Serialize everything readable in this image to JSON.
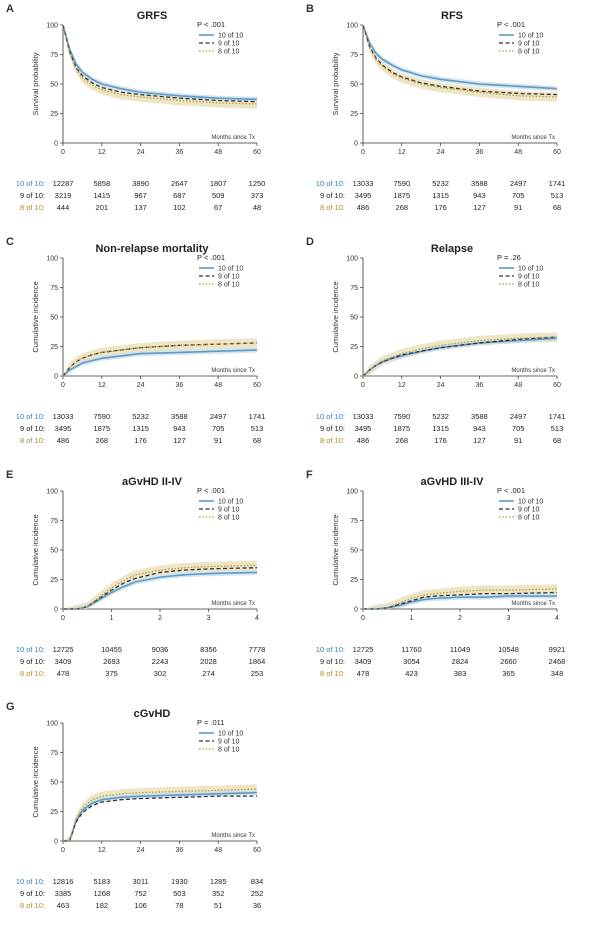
{
  "colors": {
    "g10": "#5a9bc8",
    "g9": "#333333",
    "g8": "#b59a3a",
    "band8": "#e8dcb4",
    "band10": "#c9dcea",
    "label10": "#3a7fbf",
    "label8": "#b08b2a"
  },
  "legend_names": [
    "10 of 10",
    "9 of 10",
    "8 of 10"
  ],
  "risk_labels": [
    "10 of 10:",
    "9 of 10:",
    "8 of 10:"
  ],
  "chart_data": [
    {
      "panel": "A",
      "type": "line",
      "title": "GRFS",
      "pvalue": "P < .001",
      "ylabel": "Survival probability",
      "xlabel": "Months since Tx",
      "xlim": [
        0,
        60
      ],
      "ylim": [
        0,
        100
      ],
      "xticks": [
        "0",
        "12",
        "24",
        "36",
        "48",
        "60"
      ],
      "yticks": [
        "0",
        "25",
        "50",
        "75",
        "100"
      ],
      "x": [
        0,
        2,
        4,
        6,
        9,
        12,
        18,
        24,
        36,
        48,
        60
      ],
      "series": [
        {
          "name": "10 of 10",
          "values": [
            100,
            80,
            67,
            60,
            54,
            50,
            46,
            43,
            40,
            38,
            37
          ]
        },
        {
          "name": "9 of 10",
          "values": [
            100,
            78,
            64,
            57,
            51,
            47,
            43,
            41,
            38,
            36,
            35
          ]
        },
        {
          "name": "8 of 10",
          "values": [
            100,
            77,
            63,
            55,
            49,
            45,
            41,
            39,
            36,
            34,
            33
          ]
        }
      ],
      "risk": [
        [
          "12287",
          "5858",
          "3890",
          "2647",
          "1807",
          "1250"
        ],
        [
          "3219",
          "1415",
          "967",
          "687",
          "509",
          "373"
        ],
        [
          "444",
          "201",
          "137",
          "102",
          "67",
          "48"
        ]
      ]
    },
    {
      "panel": "B",
      "type": "line",
      "title": "RFS",
      "pvalue": "P < .001",
      "ylabel": "Survival probability",
      "xlabel": "Months since Tx",
      "xlim": [
        0,
        60
      ],
      "ylim": [
        0,
        100
      ],
      "xticks": [
        "0",
        "12",
        "24",
        "36",
        "48",
        "60"
      ],
      "yticks": [
        "0",
        "25",
        "50",
        "75",
        "100"
      ],
      "x": [
        0,
        2,
        4,
        6,
        9,
        12,
        18,
        24,
        36,
        48,
        60
      ],
      "series": [
        {
          "name": "10 of 10",
          "values": [
            100,
            85,
            76,
            71,
            66,
            62,
            57,
            54,
            50,
            48,
            46
          ]
        },
        {
          "name": "9 of 10",
          "values": [
            100,
            82,
            72,
            66,
            60,
            56,
            51,
            48,
            44,
            42,
            41
          ]
        },
        {
          "name": "8 of 10",
          "values": [
            100,
            81,
            71,
            65,
            59,
            55,
            50,
            47,
            43,
            40,
            39
          ]
        }
      ],
      "risk": [
        [
          "13033",
          "7590",
          "5232",
          "3588",
          "2497",
          "1741"
        ],
        [
          "3495",
          "1875",
          "1315",
          "943",
          "705",
          "513"
        ],
        [
          "486",
          "268",
          "176",
          "127",
          "91",
          "68"
        ]
      ]
    },
    {
      "panel": "C",
      "type": "line",
      "title": "Non-relapse mortality",
      "pvalue": "P < .001",
      "ylabel": "Cumulative incidence",
      "xlabel": "Months since Tx",
      "xlim": [
        0,
        60
      ],
      "ylim": [
        0,
        100
      ],
      "xticks": [
        "0",
        "12",
        "24",
        "36",
        "48",
        "60"
      ],
      "yticks": [
        "0",
        "25",
        "50",
        "75",
        "100"
      ],
      "x": [
        0,
        2,
        4,
        6,
        9,
        12,
        18,
        24,
        36,
        48,
        60
      ],
      "series": [
        {
          "name": "10 of 10",
          "values": [
            0,
            5,
            8,
            11,
            13,
            15,
            17,
            19,
            20,
            21,
            22
          ]
        },
        {
          "name": "9 of 10",
          "values": [
            0,
            7,
            12,
            15,
            18,
            20,
            22,
            24,
            26,
            27,
            28
          ]
        },
        {
          "name": "8 of 10",
          "values": [
            0,
            7,
            12,
            15,
            18,
            20,
            22,
            24,
            26,
            27,
            28
          ]
        }
      ],
      "risk": [
        [
          "13033",
          "7590",
          "5232",
          "3588",
          "2497",
          "1741"
        ],
        [
          "3495",
          "1875",
          "1315",
          "943",
          "705",
          "513"
        ],
        [
          "486",
          "268",
          "176",
          "127",
          "91",
          "68"
        ]
      ]
    },
    {
      "panel": "D",
      "type": "line",
      "title": "Relapse",
      "pvalue": "P = .26",
      "ylabel": "Cumulative incidence",
      "xlabel": "Months since Tx",
      "xlim": [
        0,
        60
      ],
      "ylim": [
        0,
        100
      ],
      "xticks": [
        "0",
        "12",
        "24",
        "36",
        "48",
        "60"
      ],
      "yticks": [
        "0",
        "25",
        "50",
        "75",
        "100"
      ],
      "x": [
        0,
        2,
        4,
        6,
        9,
        12,
        18,
        24,
        36,
        48,
        60
      ],
      "series": [
        {
          "name": "10 of 10",
          "values": [
            0,
            5,
            9,
            12,
            15,
            17,
            21,
            24,
            28,
            30,
            32
          ]
        },
        {
          "name": "9 of 10",
          "values": [
            0,
            5,
            9,
            12,
            15,
            18,
            21,
            24,
            28,
            31,
            33
          ]
        },
        {
          "name": "8 of 10",
          "values": [
            0,
            5,
            9,
            13,
            16,
            19,
            23,
            26,
            30,
            32,
            33
          ]
        }
      ],
      "risk": [
        [
          "13033",
          "7590",
          "5232",
          "3588",
          "2497",
          "1741"
        ],
        [
          "3495",
          "1875",
          "1315",
          "943",
          "705",
          "513"
        ],
        [
          "486",
          "268",
          "176",
          "127",
          "91",
          "68"
        ]
      ]
    },
    {
      "panel": "E",
      "type": "line",
      "title": "aGvHD II-IV",
      "pvalue": "P < .001",
      "ylabel": "Cumulative incidence",
      "xlabel": "Months since Tx",
      "xlim": [
        0,
        4
      ],
      "ylim": [
        0,
        100
      ],
      "xticks": [
        "0",
        "1",
        "2",
        "3",
        "4"
      ],
      "yticks": [
        "0",
        "25",
        "50",
        "75",
        "100"
      ],
      "x": [
        0,
        0.3,
        0.5,
        0.75,
        1,
        1.25,
        1.5,
        2,
        2.5,
        3,
        4
      ],
      "series": [
        {
          "name": "10 of 10",
          "values": [
            0,
            0,
            2,
            8,
            14,
            19,
            23,
            27,
            29,
            30,
            31
          ]
        },
        {
          "name": "9 of 10",
          "values": [
            0,
            0,
            2,
            9,
            16,
            22,
            26,
            31,
            33,
            34,
            35
          ]
        },
        {
          "name": "8 of 10",
          "values": [
            0,
            0,
            2,
            10,
            18,
            24,
            29,
            33,
            35,
            36,
            37
          ]
        }
      ],
      "risk": [
        [
          "12725",
          "10455",
          "9036",
          "8356",
          "7778"
        ],
        [
          "3409",
          "2693",
          "2243",
          "2028",
          "1864"
        ],
        [
          "478",
          "375",
          "302",
          "274",
          "253"
        ]
      ]
    },
    {
      "panel": "F",
      "type": "line",
      "title": "aGvHD III-IV",
      "pvalue": "P < .001",
      "ylabel": "Cumulative incidence",
      "xlabel": "Months since Tx",
      "xlim": [
        0,
        4
      ],
      "ylim": [
        0,
        100
      ],
      "xticks": [
        "0",
        "1",
        "2",
        "3",
        "4"
      ],
      "yticks": [
        "0",
        "25",
        "50",
        "75",
        "100"
      ],
      "x": [
        0,
        0.3,
        0.5,
        0.75,
        1,
        1.25,
        1.5,
        2,
        2.5,
        3,
        4
      ],
      "series": [
        {
          "name": "10 of 10",
          "values": [
            0,
            0,
            1,
            3,
            6,
            8,
            9,
            10,
            10,
            11,
            11
          ]
        },
        {
          "name": "9 of 10",
          "values": [
            0,
            0,
            1,
            4,
            7,
            10,
            11,
            12,
            13,
            13,
            14
          ]
        },
        {
          "name": "8 of 10",
          "values": [
            0,
            0,
            1,
            5,
            9,
            12,
            13,
            15,
            16,
            16,
            17
          ]
        }
      ],
      "risk": [
        [
          "12725",
          "11760",
          "11049",
          "10548",
          "9921"
        ],
        [
          "3409",
          "3054",
          "2824",
          "2660",
          "2468"
        ],
        [
          "478",
          "423",
          "383",
          "365",
          "348"
        ]
      ]
    },
    {
      "panel": "G",
      "type": "line",
      "title": "cGvHD",
      "pvalue": "P = .011",
      "ylabel": "Cumulative incidence",
      "xlabel": "Months since Tx",
      "xlim": [
        0,
        60
      ],
      "ylim": [
        0,
        100
      ],
      "xticks": [
        "0",
        "12",
        "24",
        "36",
        "48",
        "60"
      ],
      "yticks": [
        "0",
        "25",
        "50",
        "75",
        "100"
      ],
      "x": [
        0,
        2,
        3,
        4,
        6,
        9,
        12,
        18,
        24,
        36,
        48,
        60
      ],
      "series": [
        {
          "name": "10 of 10",
          "values": [
            0,
            0,
            8,
            17,
            26,
            32,
            35,
            37,
            38,
            39,
            40,
            41
          ]
        },
        {
          "name": "9 of 10",
          "values": [
            0,
            0,
            8,
            16,
            24,
            30,
            33,
            35,
            36,
            37,
            38,
            38
          ]
        },
        {
          "name": "8 of 10",
          "values": [
            0,
            0,
            9,
            18,
            28,
            35,
            38,
            40,
            41,
            42,
            43,
            44
          ]
        }
      ],
      "risk": [
        [
          "12816",
          "5183",
          "3011",
          "1930",
          "1285",
          "834"
        ],
        [
          "3385",
          "1268",
          "752",
          "503",
          "352",
          "252"
        ],
        [
          "463",
          "182",
          "106",
          "78",
          "51",
          "36"
        ]
      ]
    }
  ]
}
